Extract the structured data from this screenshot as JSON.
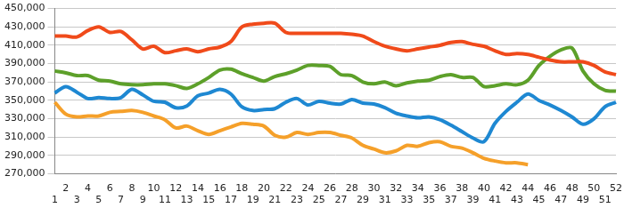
{
  "chart_data": {
    "type": "line",
    "categories": [
      "1",
      "2",
      "3",
      "4",
      "5",
      "6",
      "7",
      "8",
      "9",
      "10",
      "11",
      "12",
      "13",
      "14",
      "15",
      "16",
      "17",
      "18",
      "19",
      "20",
      "21",
      "22",
      "23",
      "24",
      "25",
      "26",
      "27",
      "28",
      "29",
      "30",
      "31",
      "32",
      "33",
      "34",
      "35",
      "36",
      "37",
      "38",
      "39",
      "40",
      "41",
      "42",
      "43",
      "44",
      "45",
      "46",
      "47",
      "48",
      "49",
      "50",
      "51",
      "52"
    ],
    "series": [
      {
        "color": "#f04a1a",
        "values": [
          420000,
          420000,
          419000,
          426000,
          430000,
          424000,
          425000,
          416000,
          406000,
          409000,
          402000,
          404000,
          406000,
          403000,
          406000,
          408000,
          414000,
          430000,
          433000,
          434000,
          434000,
          424000,
          423000,
          423000,
          423000,
          423000,
          423000,
          422000,
          420000,
          414000,
          409000,
          406000,
          404000,
          406000,
          408000,
          410000,
          413000,
          414000,
          411000,
          409000,
          404000,
          400000,
          401000,
          400000,
          397000,
          394000,
          392000,
          392000,
          392000,
          388000,
          381000,
          378000
        ]
      },
      {
        "color": "#5da02a",
        "values": [
          382000,
          380000,
          377000,
          377000,
          372000,
          371000,
          368000,
          367000,
          367000,
          368000,
          368000,
          366000,
          363000,
          368000,
          375000,
          383000,
          384000,
          379000,
          375000,
          371000,
          376000,
          379000,
          383000,
          388000,
          388000,
          387000,
          378000,
          377000,
          370000,
          368000,
          370000,
          366000,
          369000,
          371000,
          372000,
          376000,
          378000,
          375000,
          375000,
          365000,
          366000,
          368000,
          367000,
          372000,
          388000,
          398000,
          405000,
          407000,
          382000,
          368000,
          361000,
          360000
        ]
      },
      {
        "color": "#1e88d2",
        "values": [
          358000,
          365000,
          359000,
          352000,
          353000,
          352000,
          353000,
          362000,
          356000,
          349000,
          348000,
          342000,
          344000,
          355000,
          358000,
          362000,
          357000,
          343000,
          339000,
          340000,
          341000,
          348000,
          352000,
          345000,
          349000,
          347000,
          346000,
          351000,
          347000,
          346000,
          342000,
          336000,
          333000,
          331000,
          332000,
          329000,
          323000,
          316000,
          309000,
          305000,
          325000,
          338000,
          348000,
          357000,
          350000,
          345000,
          339000,
          332000,
          324000,
          330000,
          343000,
          348000
        ]
      },
      {
        "color": "#f5a02a",
        "values": [
          348000,
          335000,
          332000,
          333000,
          333000,
          337000,
          338000,
          339000,
          337000,
          333000,
          329000,
          320000,
          322000,
          317000,
          313000,
          317000,
          321000,
          325000,
          324000,
          322000,
          312000,
          310000,
          315000,
          313000,
          315000,
          315000,
          312000,
          309000,
          301000,
          297000,
          293000,
          295000,
          301000,
          300000,
          304000,
          305000,
          300000,
          298000,
          293000,
          287000,
          284000,
          282000,
          282000,
          280000,
          null,
          null,
          null,
          null,
          null,
          null,
          null,
          null
        ]
      }
    ],
    "ylim": [
      270000,
      450000
    ],
    "yticks": [
      {
        "value": 270000,
        "label": "270,000"
      },
      {
        "value": 290000,
        "label": "290,000"
      },
      {
        "value": 310000,
        "label": "310,000"
      },
      {
        "value": 330000,
        "label": "330,000"
      },
      {
        "value": 350000,
        "label": "350,000"
      },
      {
        "value": 370000,
        "label": "370,000"
      },
      {
        "value": 390000,
        "label": "390,000"
      },
      {
        "value": 410000,
        "label": "410,000"
      },
      {
        "value": 430000,
        "label": "430,000"
      },
      {
        "value": 450000,
        "label": "450,000"
      }
    ],
    "grid": true
  }
}
